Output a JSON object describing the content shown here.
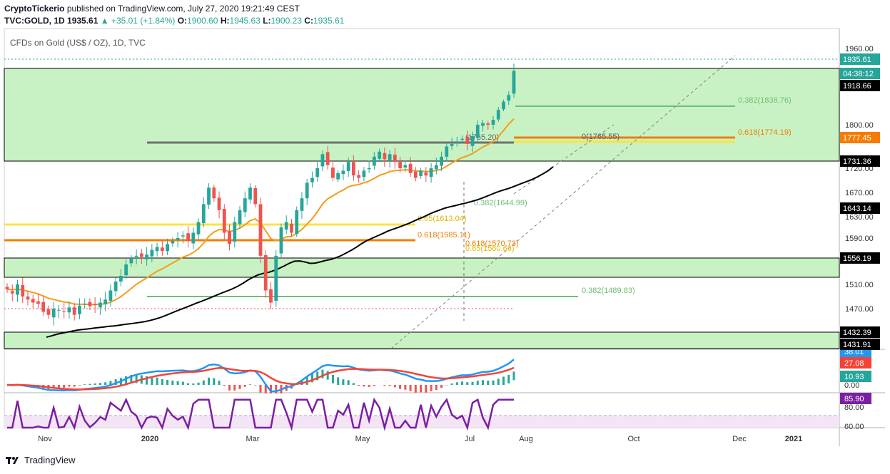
{
  "header": {
    "author": "CryptoTickerio",
    "published_text": "published on TradingView.com, July 27, 2020 19:21:49 CEST",
    "symbol": "TVC:GOLD, 1D",
    "last": "1935.61",
    "change": "+35.01 (+1.84%)",
    "o_label": "O:",
    "o": "1900.60",
    "h_label": "H:",
    "h": "1945.63",
    "l_label": "L:",
    "l": "1900.23",
    "c_label": "C:",
    "c": "1935.61"
  },
  "chart_title": "CFDs on Gold (US$ / OZ), 1D, TVC",
  "footer": {
    "brand": "TradingView"
  },
  "colors": {
    "up": "#26a69a",
    "down": "#ef5350",
    "zone": "#c8f2c4",
    "ema50": "#f59c1a",
    "ma200": "#000000",
    "fib_green": "#6fbf73",
    "fib_orange": "#f57c00",
    "fib_yellow": "#f8e34a",
    "macd": "#2196f3",
    "signal": "#f44336",
    "rsi": "#7b1fa2",
    "rsi_band": "#f3e5f5"
  },
  "chart_data": {
    "type": "candlestick",
    "x_ticks": [
      "Nov",
      "2020",
      "Mar",
      "May",
      "Jul",
      "Aug",
      "Oct",
      "Dec",
      "2021"
    ],
    "price_axis_ticks": [
      1960,
      1800,
      1720,
      1670,
      1630,
      1590,
      1510,
      1470
    ],
    "price_axis_tick_labels": [
      "1960.00",
      "1800.00",
      "1720.00",
      "1670.00",
      "1630.00",
      "1590.00",
      "1510.00",
      "1470.00"
    ],
    "price_badges": [
      {
        "value": 1935.61,
        "text": "1935.61",
        "color": "#26a69a"
      },
      {
        "text": "04:38:12",
        "color": "#26a69a"
      },
      {
        "value": 1918.66,
        "text": "1918.66",
        "color": "#000000"
      },
      {
        "value": 1777.45,
        "text": "1777.45",
        "color": "#f57c00"
      },
      {
        "value": 1731.36,
        "text": "1731.36",
        "color": "#000000"
      },
      {
        "value": 1643.14,
        "text": "1643.14",
        "color": "#000000"
      },
      {
        "value": 1556.19,
        "text": "1556.19",
        "color": "#000000"
      },
      {
        "value": 1432.39,
        "text": "1432.39",
        "color": "#000000"
      },
      {
        "value": 1431.91,
        "text": "1431.91",
        "color": "#000000"
      }
    ],
    "zones": [
      {
        "from": 1731.36,
        "to": 1918.66
      },
      {
        "from": 1556.19,
        "to": 1520
      },
      {
        "from": 1431.91,
        "to": 1432.39
      }
    ],
    "levels": [
      {
        "value": 1765.2,
        "label": "(1765.20)"
      },
      {
        "value": 1765.55,
        "label": "0(1765.55)"
      },
      {
        "value": 1838.76,
        "label": "0.382(1838.76)"
      },
      {
        "value": 1774.19,
        "label": "0.618(1774.19)"
      },
      {
        "value": 1613.04,
        "label": "0.65(1613.04)"
      },
      {
        "value": 1585.11,
        "label": "0.618(1585.11)"
      },
      {
        "value": 1644.99,
        "label": "0.382(1644.99)"
      },
      {
        "value": 1570.73,
        "label": "0.618(1570.73)"
      },
      {
        "value": 1560.66,
        "label": "0.65(1560.66)"
      },
      {
        "value": 1489.83,
        "label": "0.382(1489.83)"
      }
    ],
    "macd_badges": [
      "38.01",
      "27.08",
      "10.93",
      "0.00"
    ],
    "rsi_badges": [
      "85.90",
      "80.00",
      "60.00"
    ],
    "ohlc_seed": [
      1502,
      1495,
      1510,
      1490,
      1485,
      1480,
      1478,
      1465,
      1460,
      1470,
      1468,
      1465,
      1472,
      1460,
      1475,
      1478,
      1474,
      1476,
      1480,
      1485,
      1500,
      1515,
      1525,
      1545,
      1555,
      1560,
      1558,
      1562,
      1570,
      1575,
      1568,
      1580,
      1585,
      1590,
      1595,
      1585,
      1600,
      1620,
      1650,
      1680,
      1660,
      1640,
      1600,
      1580,
      1620,
      1640,
      1660,
      1680,
      1650,
      1560,
      1500,
      1480,
      1560,
      1610,
      1620,
      1600,
      1640,
      1660,
      1690,
      1700,
      1720,
      1745,
      1725,
      1700,
      1710,
      1715,
      1730,
      1705,
      1700,
      1715,
      1720,
      1740,
      1750,
      1735,
      1745,
      1730,
      1720,
      1725,
      1710,
      1700,
      1715,
      1705,
      1720,
      1725,
      1740,
      1760,
      1765,
      1770,
      1775,
      1765,
      1780,
      1800,
      1805,
      1800,
      1815,
      1845,
      1870,
      1890,
      1935
    ]
  }
}
